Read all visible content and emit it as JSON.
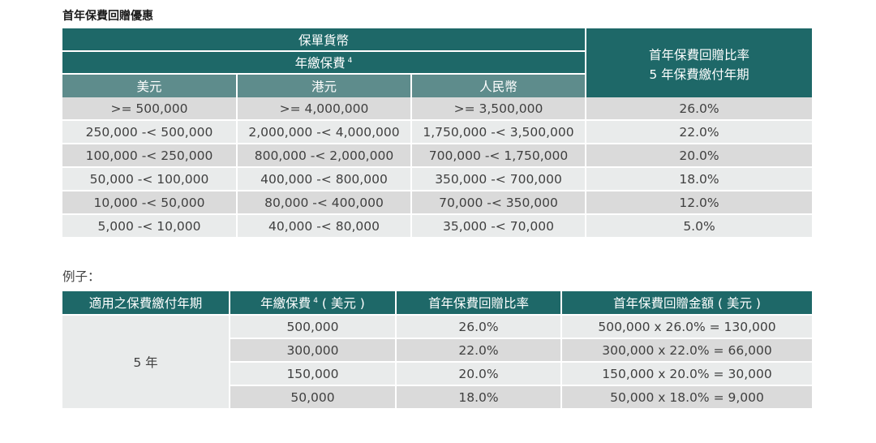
{
  "title": "首年保費回贈優惠",
  "table1": {
    "header_currency": "保單貨幣",
    "header_premium": "年繳保費",
    "header_premium_note": "4",
    "header_rate_line1": "首年保費回贈比率",
    "header_rate_line2": "5 年保費繳付年期",
    "currencies": [
      "美元",
      "港元",
      "人民幣"
    ],
    "rows": [
      [
        ">= 500,000",
        ">= 4,000,000",
        ">= 3,500,000",
        "26.0%"
      ],
      [
        "250,000 -< 500,000",
        "2,000,000 -< 4,000,000",
        "1,750,000 -< 3,500,000",
        "22.0%"
      ],
      [
        "100,000 -< 250,000",
        "800,000 -< 2,000,000",
        "700,000 -< 1,750,000",
        "20.0%"
      ],
      [
        "50,000 -< 100,000",
        "400,000 -< 800,000",
        "350,000 -< 700,000",
        "18.0%"
      ],
      [
        "10,000 -< 50,000",
        "80,000 -< 400,000",
        "70,000 -< 350,000",
        "12.0%"
      ],
      [
        "5,000 -< 10,000",
        "40,000 -< 80,000",
        "35,000 -< 70,000",
        "5.0%"
      ]
    ]
  },
  "example_label": "例子：",
  "table2": {
    "headers": [
      "適用之保費繳付年期",
      "年繳保費",
      "首年保費回贈比率",
      "首年保費回贈金額 ( 美元 )"
    ],
    "header_premium_note": "4",
    "header_premium_suffix": "( 美元 )",
    "period": "5 年",
    "rows": [
      [
        "500,000",
        "26.0%",
        "500,000 x 26.0% = 130,000"
      ],
      [
        "300,000",
        "22.0%",
        "300,000 x 22.0% = 66,000"
      ],
      [
        "150,000",
        "20.0%",
        "150,000 x 20.0% = 30,000"
      ],
      [
        "50,000",
        "18.0%",
        "50,000 x 18.0% = 9,000"
      ]
    ]
  }
}
